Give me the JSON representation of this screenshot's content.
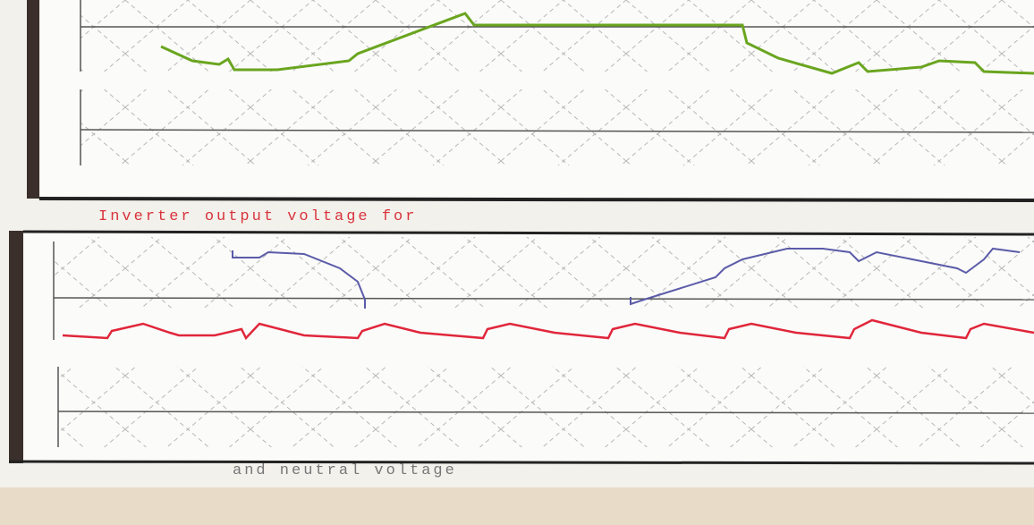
{
  "captions": {
    "middle": "Inverter output voltage for",
    "bottom": "and neutral voltage"
  }
}
